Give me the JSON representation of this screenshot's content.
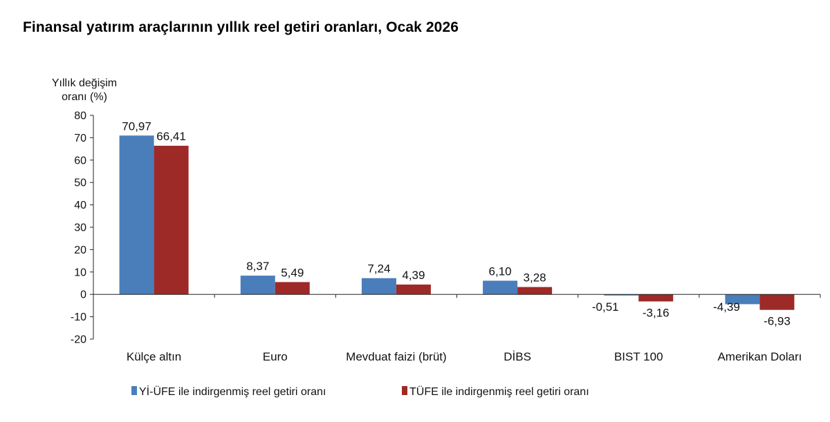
{
  "chart_data": {
    "type": "bar",
    "title": "Finansal yatırım araçlarının yıllık reel getiri oranları, Ocak 2026",
    "ylabel_lines": [
      "Yıllık değişim",
      "oranı (%)"
    ],
    "categories": [
      "Külçe altın",
      "Euro",
      "Mevduat faizi (brüt)",
      "DİBS",
      "BIST 100",
      "Amerikan Doları"
    ],
    "ylim": [
      -20,
      80
    ],
    "yticks": [
      80,
      70,
      60,
      50,
      40,
      30,
      20,
      10,
      0,
      -10,
      -20
    ],
    "grid": false,
    "legend_position": "bottom",
    "series": [
      {
        "name": "Yİ-ÜFE ile indirgenmiş reel getiri oranı",
        "color": "#4a7ebb",
        "values": [
          70.97,
          8.37,
          7.24,
          6.1,
          -0.51,
          -4.39
        ],
        "labels": [
          "70,97",
          "8,37",
          "7,24",
          "6,10",
          "-0,51",
          "-4,39"
        ]
      },
      {
        "name": "TÜFE ile indirgenmiş reel getiri oranı",
        "color": "#9e2a27",
        "values": [
          66.41,
          5.49,
          4.39,
          3.28,
          -3.16,
          -6.93
        ],
        "labels": [
          "66,41",
          "5,49",
          "4,39",
          "3,28",
          "-3,16",
          "-6,93"
        ]
      }
    ]
  }
}
